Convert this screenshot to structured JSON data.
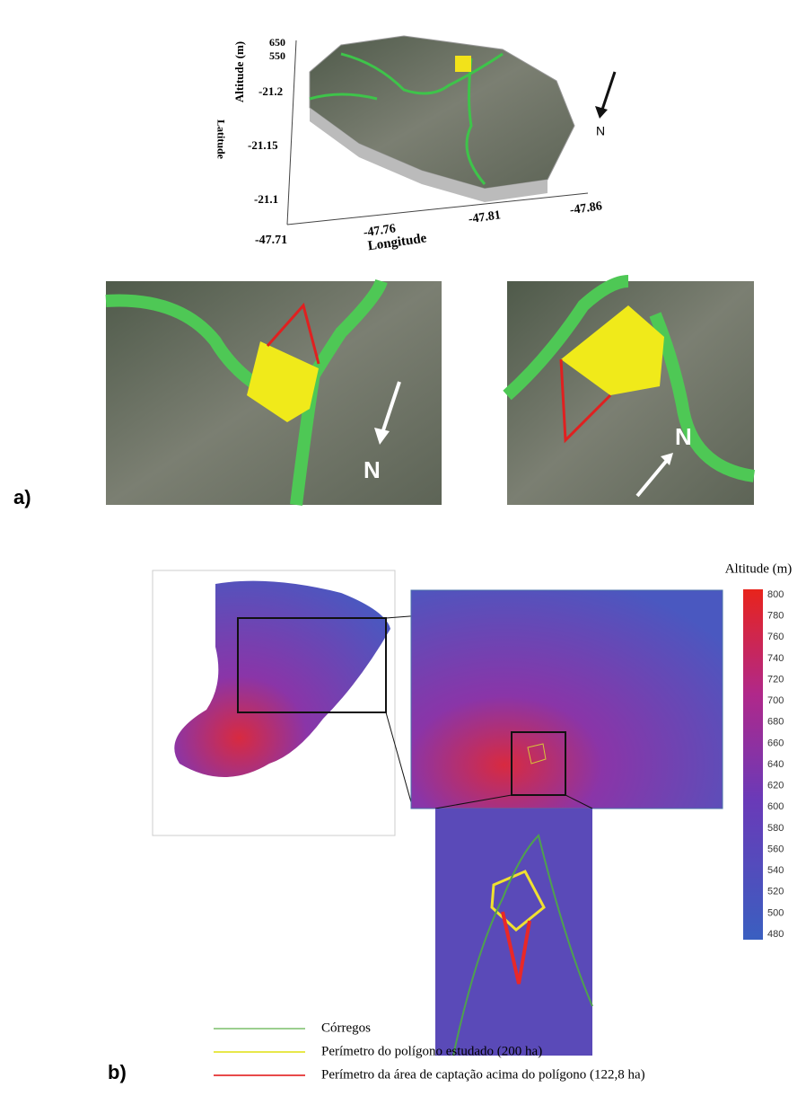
{
  "panel_a": {
    "label": "a)",
    "plot3d": {
      "z_axis_title": "Altitude (m)",
      "z_ticks": [
        "650",
        "550"
      ],
      "y_axis_title": "Latitude",
      "y_ticks": [
        "-21.2",
        "-21.15",
        "-21.1"
      ],
      "x_axis_title": "Longitude",
      "x_ticks": [
        "-47.71",
        "-47.76",
        "-47.81",
        "-47.86"
      ],
      "north": "N"
    },
    "inset_left": {
      "north": "N"
    },
    "inset_right": {
      "north": "N"
    }
  },
  "panel_b": {
    "label": "b)",
    "colorbar": {
      "title": "Altitude (m)",
      "ticks": [
        800,
        780,
        760,
        740,
        720,
        700,
        680,
        660,
        640,
        620,
        600,
        580,
        560,
        540,
        520,
        500,
        480
      ]
    },
    "legend": [
      {
        "label": "Córregos",
        "color": "#9ccf8f"
      },
      {
        "label": "Perímetro do polígono estudado (200 ha)",
        "color": "#e8e84a"
      },
      {
        "label": "Perímetro da área de captação acima do polígono (122,8 ha)",
        "color": "#e84a4a"
      }
    ]
  }
}
